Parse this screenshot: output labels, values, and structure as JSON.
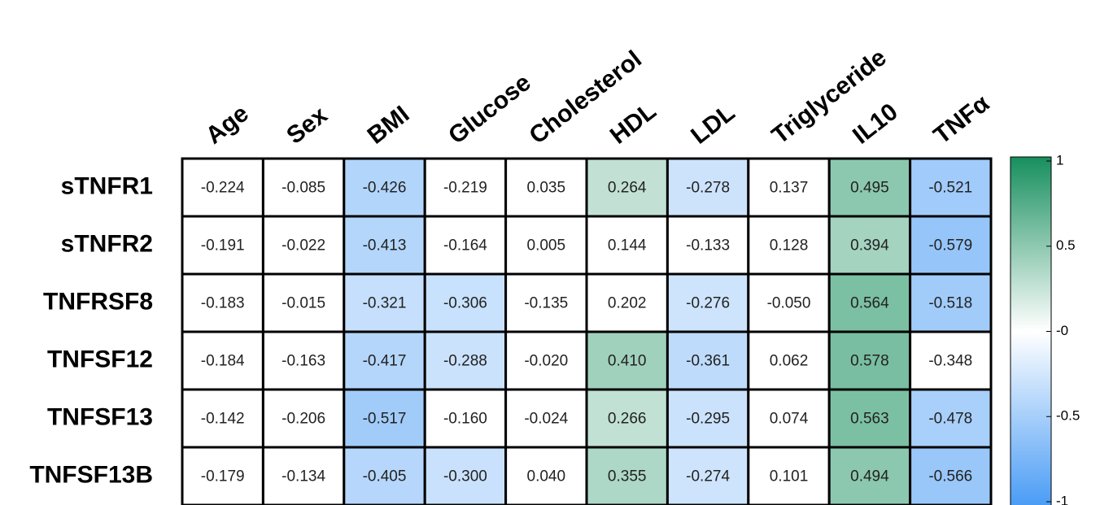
{
  "chart_data": {
    "type": "heatmap",
    "rows": [
      "sTNFR1",
      "sTNFR2",
      "TNFRSF8",
      "TNFSF12",
      "TNFSF13",
      "TNFSF13B"
    ],
    "columns": [
      "Age",
      "Sex",
      "BMI",
      "Glucose",
      "Cholesterol",
      "HDL",
      "LDL",
      "Triglyceride",
      "IL10",
      "TNFα"
    ],
    "values": [
      [
        -0.224,
        -0.085,
        -0.426,
        -0.219,
        0.035,
        0.264,
        -0.278,
        0.137,
        0.495,
        -0.521
      ],
      [
        -0.191,
        -0.022,
        -0.413,
        -0.164,
        0.005,
        0.144,
        -0.133,
        0.128,
        0.394,
        -0.579
      ],
      [
        -0.183,
        -0.015,
        -0.321,
        -0.306,
        -0.135,
        0.202,
        -0.276,
        -0.05,
        0.564,
        -0.518
      ],
      [
        -0.184,
        -0.163,
        -0.417,
        -0.288,
        -0.02,
        0.41,
        -0.361,
        0.062,
        0.578,
        -0.348
      ],
      [
        -0.142,
        -0.206,
        -0.517,
        -0.16,
        -0.024,
        0.266,
        -0.295,
        0.074,
        0.563,
        -0.478
      ],
      [
        -0.179,
        -0.134,
        -0.405,
        -0.3,
        0.04,
        0.355,
        -0.274,
        0.101,
        0.494,
        -0.566
      ]
    ],
    "value_labels": [
      [
        "-0.224",
        "-0.085",
        "-0.426",
        "-0.219",
        "0.035",
        "0.264",
        "-0.278",
        "0.137",
        "0.495",
        "-0.521"
      ],
      [
        "-0.191",
        "-0.022",
        "-0.413",
        "-0.164",
        "0.005",
        "0.144",
        "-0.133",
        "0.128",
        "0.394",
        "-0.579"
      ],
      [
        "-0.183",
        "-0.015",
        "-0.321",
        "-0.306",
        "-0.135",
        "0.202",
        "-0.276",
        "-0.050",
        "0.564",
        "-0.518"
      ],
      [
        "-0.184",
        "-0.163",
        "-0.417",
        "-0.288",
        "-0.020",
        "0.410",
        "-0.361",
        "0.062",
        "0.578",
        "-0.348"
      ],
      [
        "-0.142",
        "-0.206",
        "-0.517",
        "-0.160",
        "-0.024",
        "0.266",
        "-0.295",
        "0.074",
        "0.563",
        "-0.478"
      ],
      [
        "-0.179",
        "-0.134",
        "-0.405",
        "-0.300",
        "0.040",
        "0.355",
        "-0.274",
        "0.101",
        "0.494",
        "-0.566"
      ]
    ],
    "colored": [
      [
        false,
        false,
        true,
        false,
        false,
        true,
        true,
        false,
        true,
        true
      ],
      [
        false,
        false,
        true,
        false,
        false,
        false,
        false,
        false,
        true,
        true
      ],
      [
        false,
        false,
        true,
        true,
        false,
        false,
        true,
        false,
        true,
        true
      ],
      [
        false,
        false,
        true,
        true,
        false,
        true,
        true,
        false,
        true,
        false
      ],
      [
        false,
        false,
        true,
        false,
        false,
        true,
        true,
        false,
        true,
        true
      ],
      [
        false,
        false,
        true,
        true,
        false,
        true,
        true,
        false,
        true,
        true
      ]
    ],
    "colormap": {
      "low": "#4a9cf5",
      "mid": "#ffffff",
      "high": "#178f5e"
    },
    "clim": [
      -1,
      1
    ],
    "cticks": [
      1,
      0.5,
      {
        "value": 0,
        "label": "-0"
      },
      -0.5,
      -1
    ]
  }
}
